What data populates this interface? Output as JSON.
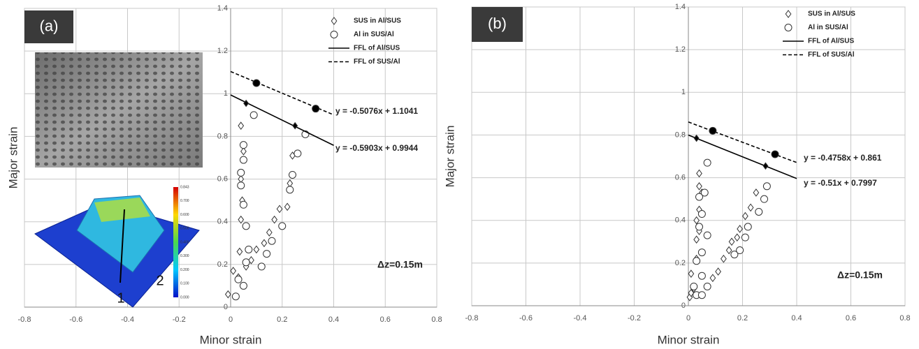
{
  "chart_data": [
    {
      "type": "scatter",
      "panel_label": "(a)",
      "xlabel": "Minor strain",
      "ylabel": "Major strain",
      "xlim": [
        -0.8,
        0.8
      ],
      "ylim": [
        0,
        1.4
      ],
      "xticks": [
        -0.8,
        -0.6,
        -0.4,
        -0.2,
        0,
        0.2,
        0.4,
        0.6,
        0.8
      ],
      "yticks": [
        0,
        0.2,
        0.4,
        0.6,
        0.8,
        1,
        1.2,
        1.4
      ],
      "grid": true,
      "series": [
        {
          "name": "SUS in Al/SUS",
          "marker": "diamond",
          "color": "#444",
          "x": [
            -0.01,
            0.01,
            0.03,
            0.035,
            0.04,
            0.045,
            0.04,
            0.05,
            0.04,
            0.06,
            0.08,
            0.1,
            0.13,
            0.15,
            0.17,
            0.19,
            0.22,
            0.23,
            0.24
          ],
          "values": [
            0.06,
            0.17,
            0.14,
            0.26,
            0.41,
            0.5,
            0.6,
            0.73,
            0.85,
            0.19,
            0.22,
            0.27,
            0.3,
            0.35,
            0.41,
            0.46,
            0.47,
            0.58,
            0.71
          ]
        },
        {
          "name": "Al in SUS/Al",
          "marker": "circle",
          "color": "#444",
          "x": [
            0.02,
            0.03,
            0.05,
            0.06,
            0.07,
            0.06,
            0.05,
            0.04,
            0.04,
            0.05,
            0.05,
            0.09,
            0.12,
            0.14,
            0.16,
            0.2,
            0.23,
            0.24,
            0.26,
            0.29
          ],
          "values": [
            0.05,
            0.13,
            0.1,
            0.21,
            0.27,
            0.38,
            0.48,
            0.57,
            0.63,
            0.69,
            0.76,
            0.9,
            0.19,
            0.25,
            0.31,
            0.38,
            0.55,
            0.62,
            0.72,
            0.81
          ]
        },
        {
          "name": "FFL of Al/SUS",
          "marker": "solid",
          "color": "#000",
          "x": [
            0,
            0.4
          ],
          "values": [
            0.9944,
            0.758
          ],
          "points": {
            "marker": "diamond",
            "x": [
              0.06,
              0.25
            ],
            "values": [
              0.955,
              0.85
            ]
          }
        },
        {
          "name": "FFL of SUS/Al",
          "marker": "dashed",
          "color": "#000",
          "x": [
            0,
            0.4
          ],
          "values": [
            1.1041,
            0.901
          ],
          "points": {
            "marker": "circle",
            "x": [
              0.1,
              0.33
            ],
            "values": [
              1.05,
              0.93
            ]
          }
        }
      ],
      "annotations": [
        "y = -0.5076x + 1.1041",
        "y = -0.5903x + 0.9944",
        "Δz=0.15m"
      ],
      "inset": {
        "labels": [
          "1",
          "2"
        ],
        "colorbar_labels": [
          "0.843",
          "0.700",
          "0.600",
          "0.500",
          "0.400",
          "0.300",
          "0.200",
          "0.100",
          "0.000"
        ]
      }
    },
    {
      "type": "scatter",
      "panel_label": "(b)",
      "xlabel": "Minor strain",
      "ylabel": "Major strain",
      "xlim": [
        -0.8,
        0.8
      ],
      "ylim": [
        0,
        1.4
      ],
      "xticks": [
        -0.8,
        -0.6,
        -0.4,
        -0.2,
        0,
        0.2,
        0.4,
        0.6,
        0.8
      ],
      "yticks": [
        0,
        0.2,
        0.4,
        0.6,
        0.8,
        1,
        1.2,
        1.4
      ],
      "grid": true,
      "series": [
        {
          "name": "SUS in Al/SUS",
          "marker": "diamond",
          "color": "#444",
          "x": [
            0.005,
            0.01,
            0.02,
            0.01,
            0.03,
            0.03,
            0.04,
            0.03,
            0.04,
            0.05,
            0.04,
            0.04,
            0.09,
            0.11,
            0.13,
            0.15,
            0.16,
            0.18,
            0.19,
            0.21,
            0.23,
            0.25
          ],
          "values": [
            0.04,
            0.06,
            0.08,
            0.15,
            0.22,
            0.31,
            0.35,
            0.4,
            0.45,
            0.53,
            0.56,
            0.62,
            0.13,
            0.16,
            0.22,
            0.26,
            0.3,
            0.32,
            0.36,
            0.42,
            0.46,
            0.53
          ]
        },
        {
          "name": "Al in SUS/Al",
          "marker": "circle",
          "color": "#444",
          "x": [
            0.03,
            0.02,
            0.05,
            0.07,
            0.05,
            0.03,
            0.05,
            0.07,
            0.04,
            0.05,
            0.04,
            0.06,
            0.07,
            0.17,
            0.19,
            0.21,
            0.22,
            0.26,
            0.28,
            0.29
          ],
          "values": [
            0.05,
            0.09,
            0.05,
            0.09,
            0.14,
            0.21,
            0.25,
            0.33,
            0.37,
            0.43,
            0.51,
            0.53,
            0.67,
            0.24,
            0.26,
            0.32,
            0.37,
            0.44,
            0.5,
            0.56
          ]
        },
        {
          "name": "FFL of Al/SUS",
          "marker": "solid",
          "color": "#000",
          "x": [
            0,
            0.4
          ],
          "values": [
            0.7997,
            0.596
          ],
          "points": {
            "marker": "diamond",
            "x": [
              0.03,
              0.285
            ],
            "values": [
              0.785,
              0.655
            ]
          }
        },
        {
          "name": "FFL of SUS/Al",
          "marker": "dashed",
          "color": "#000",
          "x": [
            0,
            0.4
          ],
          "values": [
            0.861,
            0.671
          ],
          "points": {
            "marker": "circle",
            "x": [
              0.09,
              0.32
            ],
            "values": [
              0.82,
              0.71
            ]
          }
        }
      ],
      "annotations": [
        "y = -0.4758x + 0.861",
        "y = -0.51x + 0.7997",
        "Δz=0.15m"
      ]
    }
  ]
}
